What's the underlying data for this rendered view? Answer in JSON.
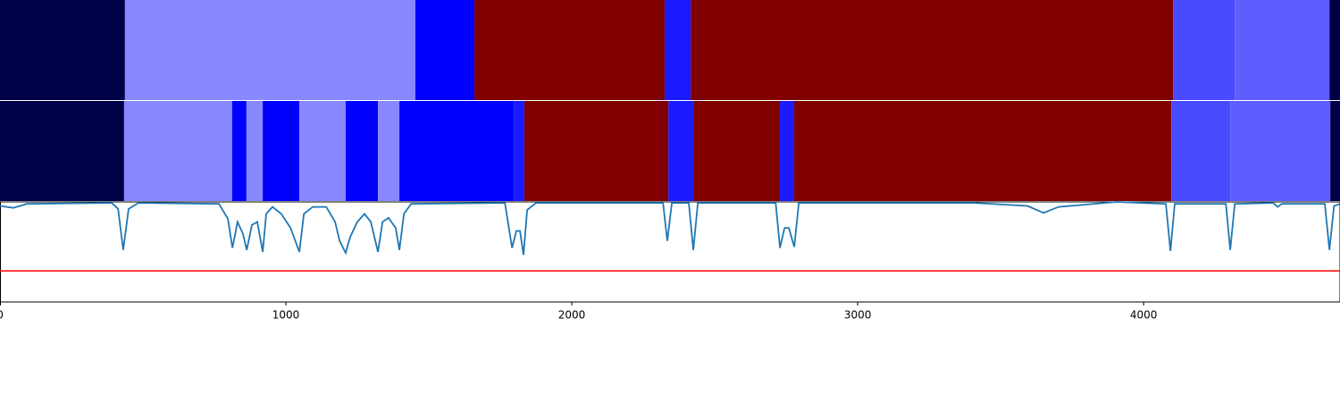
{
  "chart_data": {
    "type": "segments",
    "xlim": [
      0,
      4687
    ],
    "xticks": [
      0,
      1000,
      2000,
      3000,
      4000
    ],
    "rows": [
      {
        "segments": [
          {
            "start": 0,
            "end": 437,
            "color": "#000048"
          },
          {
            "start": 437,
            "end": 1453,
            "color": "#8888ff"
          },
          {
            "start": 1453,
            "end": 1659,
            "color": "#0000ff"
          },
          {
            "start": 1659,
            "end": 2325,
            "color": "#800000"
          },
          {
            "start": 2325,
            "end": 2416,
            "color": "#1a1aff"
          },
          {
            "start": 2416,
            "end": 4103,
            "color": "#800000"
          },
          {
            "start": 4103,
            "end": 4319,
            "color": "#4a4aff"
          },
          {
            "start": 4319,
            "end": 4650,
            "color": "#5e5eff"
          },
          {
            "start": 4650,
            "end": 4687,
            "color": "#000048"
          }
        ]
      },
      {
        "segments": [
          {
            "start": 0,
            "end": 434,
            "color": "#000048"
          },
          {
            "start": 434,
            "end": 812,
            "color": "#8888ff"
          },
          {
            "start": 812,
            "end": 862,
            "color": "#0000ff"
          },
          {
            "start": 862,
            "end": 919,
            "color": "#8888ff"
          },
          {
            "start": 919,
            "end": 1047,
            "color": "#0000ff"
          },
          {
            "start": 1047,
            "end": 1209,
            "color": "#8888ff"
          },
          {
            "start": 1209,
            "end": 1322,
            "color": "#0000ff"
          },
          {
            "start": 1322,
            "end": 1397,
            "color": "#8888ff"
          },
          {
            "start": 1397,
            "end": 1797,
            "color": "#0000ff"
          },
          {
            "start": 1797,
            "end": 1834,
            "color": "#1a1aff"
          },
          {
            "start": 1834,
            "end": 2338,
            "color": "#800000"
          },
          {
            "start": 2338,
            "end": 2425,
            "color": "#1a1aff"
          },
          {
            "start": 2425,
            "end": 2728,
            "color": "#800000"
          },
          {
            "start": 2728,
            "end": 2778,
            "color": "#1a1aff"
          },
          {
            "start": 2778,
            "end": 4097,
            "color": "#800000"
          },
          {
            "start": 4097,
            "end": 4303,
            "color": "#4a4aff"
          },
          {
            "start": 4303,
            "end": 4653,
            "color": "#5e5eff"
          },
          {
            "start": 4653,
            "end": 4687,
            "color": "#000048"
          }
        ]
      }
    ],
    "ylim": [
      0,
      1
    ],
    "line": {
      "color": "#1f77b4",
      "x": [
        0,
        47,
        94,
        391,
        413,
        431,
        450,
        484,
        766,
        797,
        813,
        831,
        850,
        863,
        881,
        900,
        919,
        931,
        953,
        984,
        1016,
        1047,
        1063,
        1094,
        1141,
        1172,
        1188,
        1209,
        1225,
        1250,
        1275,
        1297,
        1322,
        1338,
        1359,
        1384,
        1397,
        1413,
        1438,
        1766,
        1791,
        1806,
        1819,
        1831,
        1844,
        1875,
        2319,
        2334,
        2350,
        2409,
        2425,
        2441,
        2713,
        2728,
        2744,
        2759,
        2778,
        2794,
        3406,
        3594,
        3650,
        3703,
        3906,
        4078,
        4094,
        4109,
        4288,
        4303,
        4319,
        4453,
        4469,
        4484,
        4634,
        4650,
        4666,
        4687
      ],
      "values": [
        0.96,
        0.94,
        0.98,
        0.99,
        0.93,
        0.52,
        0.93,
        0.99,
        0.98,
        0.83,
        0.54,
        0.8,
        0.68,
        0.52,
        0.77,
        0.8,
        0.5,
        0.88,
        0.95,
        0.88,
        0.74,
        0.5,
        0.88,
        0.95,
        0.95,
        0.8,
        0.61,
        0.49,
        0.65,
        0.8,
        0.88,
        0.8,
        0.5,
        0.8,
        0.84,
        0.74,
        0.52,
        0.88,
        0.98,
        0.99,
        0.54,
        0.71,
        0.71,
        0.47,
        0.92,
        0.99,
        0.99,
        0.61,
        0.99,
        0.99,
        0.52,
        0.99,
        0.99,
        0.54,
        0.74,
        0.74,
        0.55,
        0.99,
        0.99,
        0.96,
        0.89,
        0.95,
        1.0,
        0.98,
        0.51,
        0.98,
        0.98,
        0.52,
        0.98,
        0.99,
        0.95,
        0.98,
        0.98,
        0.52,
        0.96,
        0.98
      ]
    },
    "threshold": {
      "value": 0.31,
      "color": "#ff0000"
    }
  }
}
